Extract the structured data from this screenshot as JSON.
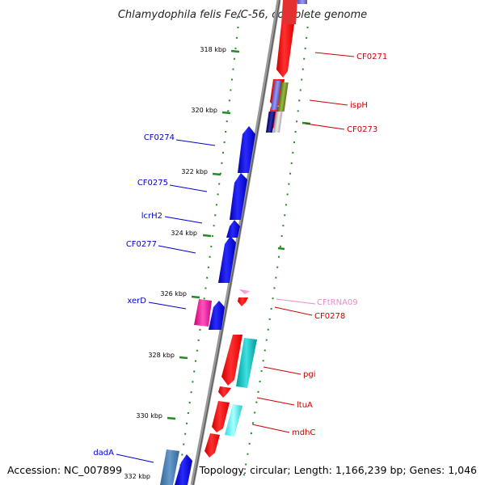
{
  "title": "Chlamydophila felis Fe/C-56, complete genome",
  "footer": {
    "accession": "Accession: NC_007899",
    "topology": "Topology: circular; Length: 1,166,239 bp; Genes: 1,046"
  },
  "colors": {
    "blue_label": "#0000cc",
    "red_label": "#cc0000",
    "pink_label": "#ee88cc",
    "forward_gene": "#0000ee",
    "reverse_gene": "#ff0000",
    "tick_color": "#228b22",
    "backbone": "#888888"
  },
  "kbp_labels": [
    "318 kbp",
    "320 kbp",
    "322 kbp",
    "324 kbp",
    "326 kbp",
    "328 kbp",
    "330 kbp",
    "332 kbp"
  ],
  "genes_left": [
    {
      "name": "CF0274",
      "color": "#0000cc"
    },
    {
      "name": "CF0275",
      "color": "#0000cc"
    },
    {
      "name": "lcrH2",
      "color": "#0000cc"
    },
    {
      "name": "CF0277",
      "color": "#0000cc"
    },
    {
      "name": "xerD",
      "color": "#0000cc"
    },
    {
      "name": "dadA",
      "color": "#0000cc"
    }
  ],
  "genes_right": [
    {
      "name": "CF0271",
      "color": "#cc0000"
    },
    {
      "name": "ispH",
      "color": "#cc0000"
    },
    {
      "name": "CF0273",
      "color": "#cc0000"
    },
    {
      "name": "CFtRNA09",
      "color": "#ee88cc"
    },
    {
      "name": "CF0278",
      "color": "#cc0000"
    },
    {
      "name": "pgi",
      "color": "#cc0000"
    },
    {
      "name": "ltuA",
      "color": "#cc0000"
    },
    {
      "name": "mdhC",
      "color": "#cc0000"
    }
  ]
}
